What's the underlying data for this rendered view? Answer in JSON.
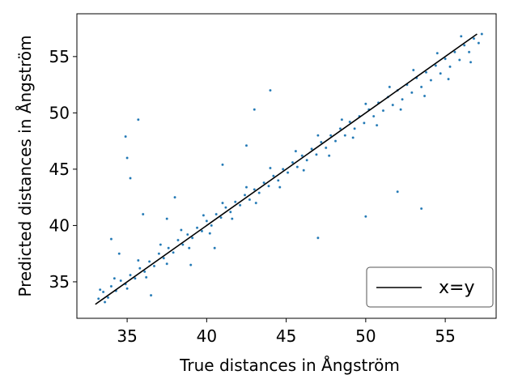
{
  "chart_data": {
    "type": "scatter",
    "xlabel": "True distances in Ångström",
    "ylabel": "Predicted distances in Ångström",
    "xlim": [
      31.84,
      58.2
    ],
    "ylim": [
      31.76,
      58.8
    ],
    "xticks": [
      35,
      40,
      45,
      50,
      55
    ],
    "yticks": [
      35,
      40,
      45,
      50,
      55
    ],
    "legend": "lower right",
    "scatter": {
      "color": "#1f77b4",
      "x": [
        33.2,
        33.5,
        33.8,
        34.0,
        34.3,
        34.6,
        34.9,
        35.2,
        35.5,
        35.8,
        36.1,
        36.4,
        36.7,
        37.0,
        37.3,
        37.6,
        37.9,
        38.2,
        38.5,
        38.8,
        39.1,
        39.4,
        39.7,
        40.0,
        40.3,
        40.6,
        40.9,
        41.2,
        41.5,
        41.8,
        42.1,
        42.4,
        42.7,
        43.0,
        43.3,
        43.6,
        43.9,
        44.2,
        44.5,
        44.8,
        45.1,
        45.4,
        45.7,
        46.0,
        46.3,
        46.6,
        46.9,
        47.2,
        47.5,
        47.8,
        48.1,
        48.4,
        48.7,
        49.0,
        49.3,
        49.6,
        49.9,
        50.2,
        50.5,
        50.8,
        51.1,
        51.4,
        51.7,
        52.0,
        52.3,
        52.6,
        52.9,
        53.2,
        53.5,
        53.8,
        54.1,
        54.4,
        54.7,
        55.0,
        55.3,
        55.6,
        55.9,
        56.2,
        56.5,
        56.8,
        57.1,
        57.3,
        33.3,
        33.6,
        34.2,
        35.0,
        35.7,
        36.2,
        37.1,
        37.5,
        38.4,
        38.9,
        39.8,
        40.2,
        41.0,
        41.6,
        42.5,
        43.1,
        44.0,
        44.6,
        45.6,
        46.1,
        47.0,
        47.7,
        48.5,
        49.2,
        50.0,
        50.7,
        51.5,
        52.2,
        53.0,
        53.7,
        54.5,
        55.2,
        56.0,
        56.6,
        34.9,
        35.7,
        35.0,
        35.2,
        36.0,
        34.0,
        34.5,
        37.5,
        38.0,
        41.0,
        42.5,
        43.0,
        44.0,
        47.0,
        50.0,
        52.0,
        53.5,
        36.5,
        40.5,
        39.0
      ],
      "y": [
        33.5,
        34.1,
        33.6,
        34.6,
        34.2,
        35.1,
        34.8,
        35.6,
        35.3,
        36.2,
        35.9,
        36.8,
        36.4,
        37.5,
        37.1,
        38.0,
        37.6,
        38.7,
        38.3,
        39.2,
        38.9,
        39.8,
        39.5,
        40.4,
        40.0,
        41.0,
        40.7,
        41.6,
        41.2,
        42.1,
        41.8,
        42.7,
        42.3,
        43.2,
        42.9,
        43.8,
        43.5,
        44.4,
        44.0,
        45.0,
        44.7,
        45.6,
        45.2,
        46.2,
        45.8,
        46.8,
        46.3,
        47.4,
        46.9,
        48.0,
        47.5,
        48.6,
        48.0,
        49.2,
        48.6,
        49.7,
        49.1,
        50.3,
        49.7,
        50.9,
        50.2,
        51.4,
        50.7,
        52.0,
        51.2,
        52.5,
        51.8,
        53.1,
        52.3,
        53.6,
        52.9,
        54.2,
        53.5,
        54.8,
        54.1,
        55.4,
        54.7,
        56.0,
        55.4,
        56.6,
        56.2,
        57.0,
        34.3,
        33.2,
        35.3,
        34.4,
        36.9,
        35.4,
        38.3,
        36.6,
        39.6,
        38.0,
        40.9,
        39.3,
        42.0,
        40.6,
        43.4,
        42.0,
        45.1,
        43.4,
        46.6,
        44.9,
        48.0,
        46.2,
        49.4,
        47.8,
        50.8,
        48.9,
        52.3,
        50.3,
        53.8,
        51.5,
        55.3,
        53.0,
        56.8,
        54.5,
        47.9,
        49.4,
        46.0,
        44.2,
        41.0,
        38.8,
        37.5,
        40.6,
        42.5,
        45.4,
        47.1,
        50.3,
        52.0,
        38.9,
        40.8,
        43.0,
        41.5,
        33.8,
        38.0,
        36.5
      ]
    },
    "series": [
      {
        "name": "x=y",
        "color": "#000000",
        "x": [
          33,
          57
        ],
        "values": [
          33,
          57
        ]
      }
    ]
  }
}
